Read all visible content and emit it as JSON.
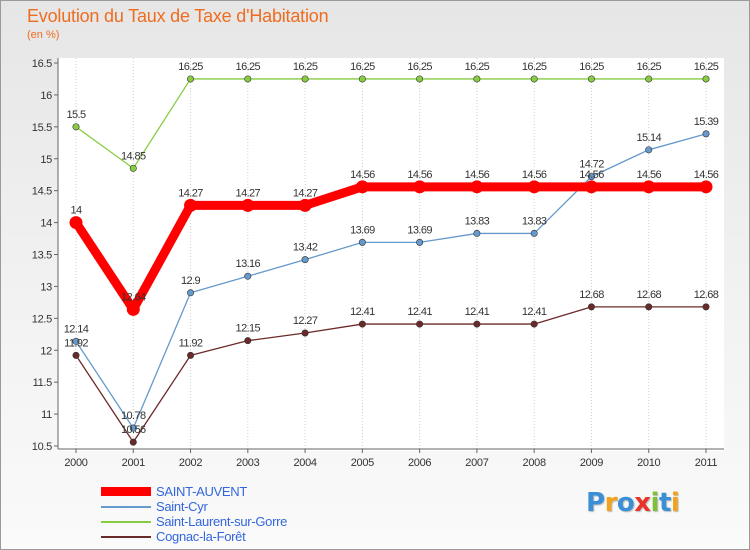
{
  "chart_data": {
    "type": "line",
    "title": "Evolution du Taux de Taxe d'Habitation",
    "unit_label": "(en %)",
    "xlabel": "",
    "ylabel": "(en %)",
    "categories": [
      "2000",
      "2001",
      "2002",
      "2003",
      "2004",
      "2005",
      "2006",
      "2007",
      "2008",
      "2009",
      "2010",
      "2011"
    ],
    "ylim": [
      10.5,
      16.5
    ],
    "yticks": [
      10.5,
      11,
      11.5,
      12,
      12.5,
      13,
      13.5,
      14,
      14.5,
      15,
      15.5,
      16,
      16.5
    ],
    "ytick_labels": [
      "10.5",
      "11",
      "11.5",
      "12",
      "12.5",
      "13",
      "13.5",
      "14",
      "14.5",
      "15",
      "15.5",
      "16",
      "16.5"
    ],
    "grid": "vertical dotted",
    "legend": "bottom-left",
    "series": [
      {
        "name": "Saint-Laurent-sur-Gorre",
        "color": "#88cc44",
        "values": [
          15.5,
          14.85,
          16.25,
          16.25,
          16.25,
          16.25,
          16.25,
          16.25,
          16.25,
          16.25,
          16.25,
          16.25
        ],
        "labels": [
          "15.5",
          "14.85",
          "16.25",
          "16.25",
          "16.25",
          "16.25",
          "16.25",
          "16.25",
          "16.25",
          "16.25",
          "16.25",
          "16.25"
        ]
      },
      {
        "name": "Saint-Cyr",
        "color": "#6699cc",
        "values": [
          12.14,
          10.78,
          12.9,
          13.16,
          13.42,
          13.69,
          13.69,
          13.83,
          13.83,
          14.72,
          15.14,
          15.39
        ],
        "labels": [
          "12.14",
          "10.78",
          "12.9",
          "13.16",
          "13.42",
          "13.69",
          "13.69",
          "13.83",
          "13.83",
          "14.72",
          "15.14",
          "15.39"
        ]
      },
      {
        "name": "Cognac-la-Forêt",
        "color": "#6b2a2a",
        "values": [
          11.92,
          10.56,
          11.92,
          12.15,
          12.27,
          12.41,
          12.41,
          12.41,
          12.41,
          12.68,
          12.68,
          12.68
        ],
        "labels": [
          "11.92",
          "10.56",
          "11.92",
          "12.15",
          "12.27",
          "12.41",
          "12.41",
          "12.41",
          "12.41",
          "12.68",
          "12.68",
          "12.68"
        ]
      },
      {
        "name": "SAINT-AUVENT",
        "color": "#ff0000",
        "values": [
          14,
          12.64,
          14.27,
          14.27,
          14.27,
          14.56,
          14.56,
          14.56,
          14.56,
          14.56,
          14.56,
          14.56
        ],
        "labels": [
          "14",
          "12.64",
          "14.27",
          "14.27",
          "14.27",
          "14.56",
          "14.56",
          "14.56",
          "14.56",
          "14.56",
          "14.56",
          "14.56"
        ]
      }
    ]
  },
  "legend_items": [
    {
      "label": "SAINT-AUVENT",
      "color": "#ff0000"
    },
    {
      "label": "Saint-Cyr",
      "color": "#6699cc"
    },
    {
      "label": "Saint-Laurent-sur-Gorre",
      "color": "#88cc44"
    },
    {
      "label": "Cognac-la-Forêt",
      "color": "#6b2a2a"
    }
  ],
  "logo": {
    "text": "Proxiti",
    "colors": [
      "#3b8fd6",
      "#f2a21d",
      "#3b8fd6",
      "#e9342a",
      "#7fbf3a",
      "#3b8fd6",
      "#f2a21d"
    ]
  }
}
